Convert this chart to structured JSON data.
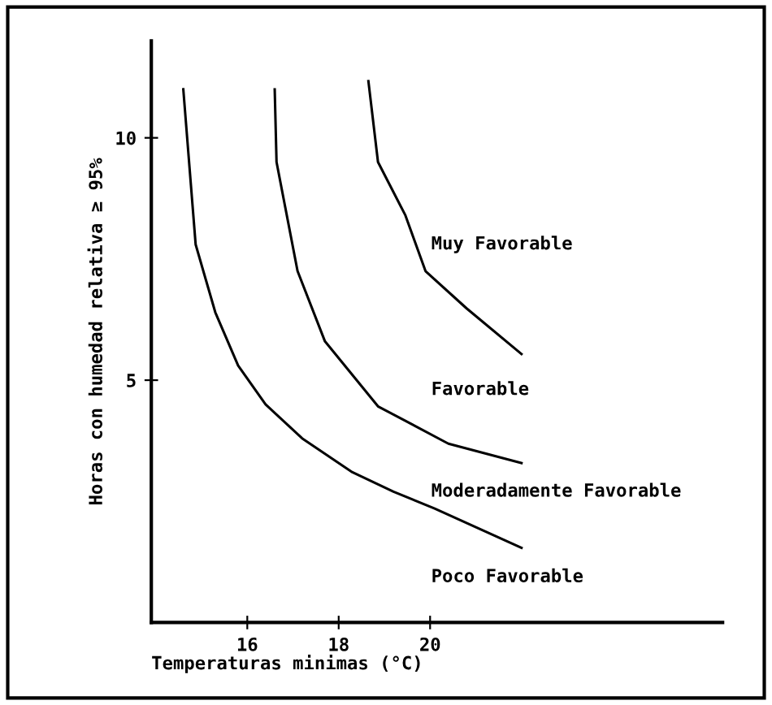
{
  "chart_data": {
    "type": "line",
    "xlabel": "Temperaturas minimas (°C)",
    "ylabel": "Horas con humedad relativa ≥ 95%",
    "series": [
      {
        "color": "#000000",
        "x": [
          14.6,
          14.87,
          15.3,
          15.8,
          16.4,
          17.2,
          18.3,
          19.2,
          20.1,
          22.0
        ],
        "values": [
          11.0,
          7.8,
          6.4,
          5.3,
          4.5,
          3.8,
          3.1,
          2.7,
          2.35,
          1.54
        ]
      },
      {
        "color": "#000000",
        "x": [
          16.6,
          16.64,
          17.1,
          17.7,
          18.86,
          20.4,
          22.0
        ],
        "values": [
          11.0,
          9.5,
          7.25,
          5.8,
          4.46,
          3.69,
          3.29
        ]
      },
      {
        "color": "#000000",
        "x": [
          18.65,
          18.86,
          19.46,
          19.9,
          20.8,
          22.0
        ],
        "values": [
          11.17,
          9.5,
          8.4,
          7.25,
          6.48,
          5.54
        ]
      }
    ],
    "annotations": [
      "Muy Favorable",
      "Favorable",
      "Moderadamente Favorable",
      "Poco Favorable"
    ],
    "xlim": [
      13.9,
      26.4
    ],
    "ylim": [
      0,
      12
    ],
    "xticks": [
      16,
      18,
      20
    ],
    "yticks": [
      5,
      10
    ],
    "grid": false,
    "legend": false,
    "marker": "none",
    "line_style": "solid"
  }
}
